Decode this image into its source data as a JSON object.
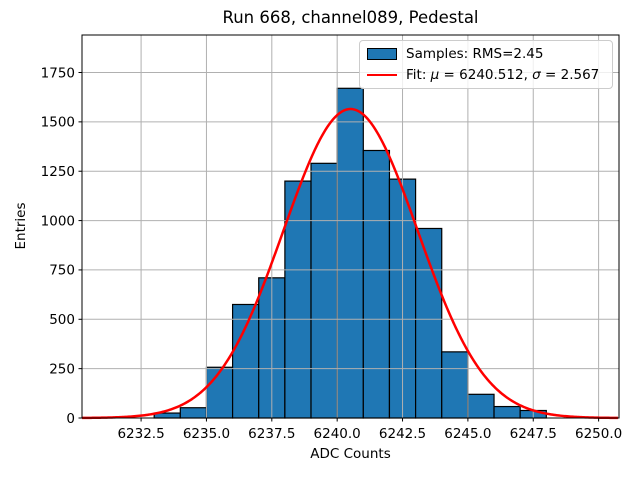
{
  "chart_data": {
    "type": "bar",
    "subtype": "histogram-with-gaussian-fit",
    "title": "Run 668, channel089, Pedestal",
    "xlabel": "ADC Counts",
    "ylabel": "Entries",
    "xlim": [
      6230.24,
      6250.78
    ],
    "ylim": [
      0,
      1940
    ],
    "grid": true,
    "bin_start": 6233,
    "bin_width": 1,
    "counts": [
      25,
      52,
      257,
      575,
      710,
      1200,
      1290,
      1670,
      1355,
      1210,
      960,
      335,
      120,
      58,
      38
    ],
    "fit": {
      "mu": 6240.512,
      "sigma": 2.567,
      "amplitude": 1565,
      "samples_rms": 2.45
    },
    "xticks": [
      6232.5,
      6235.0,
      6237.5,
      6240.0,
      6242.5,
      6245.0,
      6247.5,
      6250.0
    ],
    "xtick_labels": [
      "6232.5",
      "6235.0",
      "6237.5",
      "6240.0",
      "6242.5",
      "6245.0",
      "6247.5",
      "6250.0"
    ],
    "yticks": [
      0,
      250,
      500,
      750,
      1000,
      1250,
      1500,
      1750
    ],
    "ytick_labels": [
      "0",
      "250",
      "500",
      "750",
      "1000",
      "1250",
      "1500",
      "1750"
    ],
    "legend": {
      "position": "upper right",
      "entries": [
        {
          "swatch": "patch",
          "parts": [
            {
              "text": "Samples: RMS=2.45"
            }
          ]
        },
        {
          "swatch": "line",
          "parts": [
            {
              "text": "Fit: "
            },
            {
              "text": "μ",
              "italic": true
            },
            {
              "text": " = 6240.512, "
            },
            {
              "text": "σ",
              "italic": true
            },
            {
              "text": " = 2.567"
            }
          ]
        }
      ]
    },
    "colors": {
      "bar_fill": "#1f77b4",
      "bar_edge": "#000000",
      "fit_line": "#ff0000",
      "grid": "#b0b0b0",
      "spine": "#000000",
      "text": "#000000"
    }
  }
}
